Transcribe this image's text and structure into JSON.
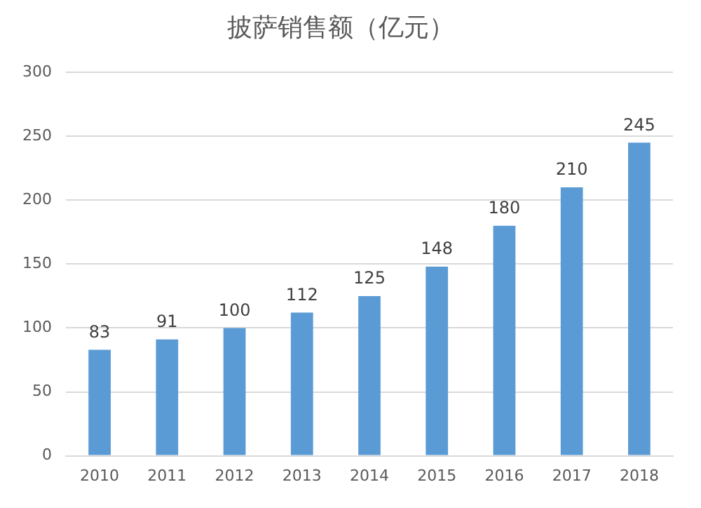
{
  "chart_data": {
    "type": "bar",
    "title": "披萨销售额（亿元）",
    "categories": [
      "2010",
      "2011",
      "2012",
      "2013",
      "2014",
      "2015",
      "2016",
      "2017",
      "2018"
    ],
    "values": [
      83,
      91,
      100,
      112,
      125,
      148,
      180,
      210,
      245
    ],
    "color": "#5b9bd5",
    "ylim": [
      0,
      300
    ],
    "yticks": [
      0,
      50,
      100,
      150,
      200,
      250,
      300
    ],
    "grid": "y",
    "data_labels": true
  }
}
